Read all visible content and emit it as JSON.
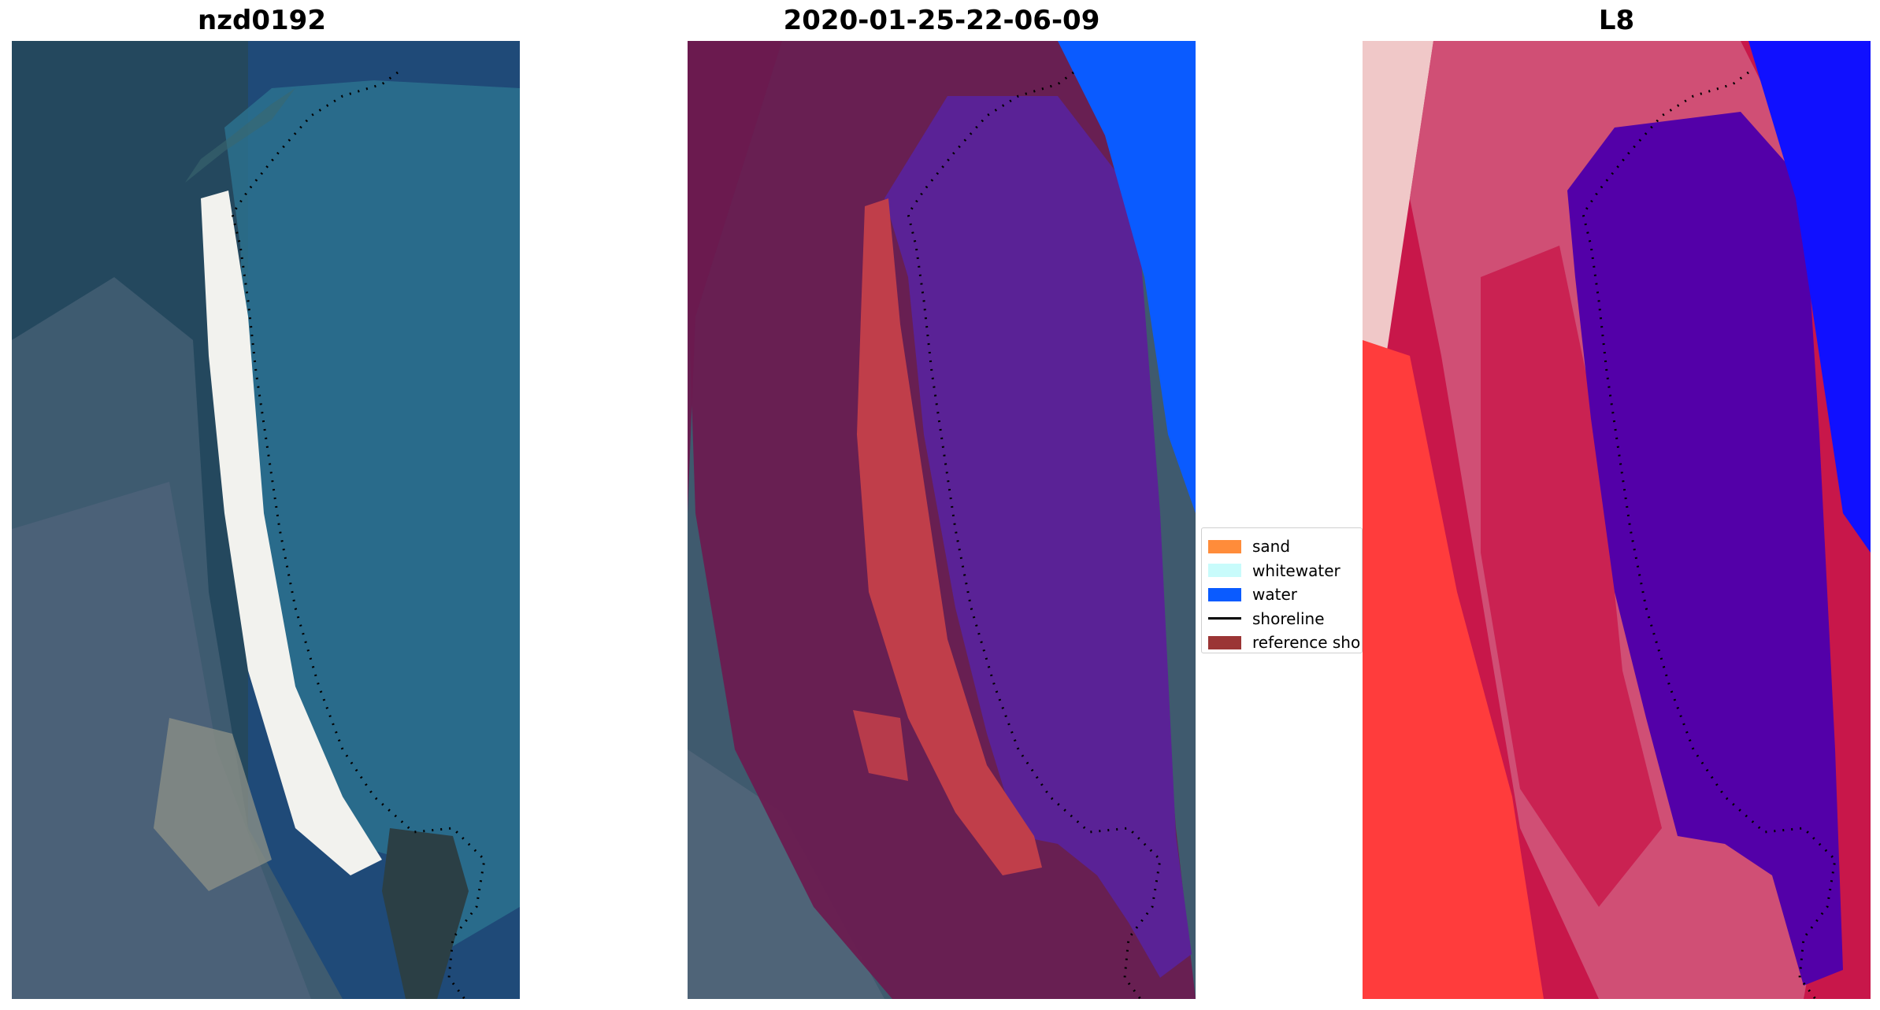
{
  "panels": [
    {
      "title": "nzd0192"
    },
    {
      "title": "2020-01-25-22-06-09"
    },
    {
      "title": "L8"
    }
  ],
  "legend": {
    "items": [
      {
        "label": "sand",
        "color": "#ff8c3a",
        "kind": "patch"
      },
      {
        "label": "whitewater",
        "color": "#c8fbfb",
        "kind": "patch"
      },
      {
        "label": "water",
        "color": "#0a5bff",
        "kind": "patch"
      },
      {
        "label": "shoreline",
        "color": "#000000",
        "kind": "line"
      },
      {
        "label": "reference shoreline",
        "color": "#9b3535",
        "kind": "patch"
      }
    ]
  },
  "colors": {
    "rgb_ocean": "#1f4a78",
    "rgb_shallow": "#2f7a93",
    "rgb_land": "#3f5a6e",
    "rgb_sand": "#f2f2ee",
    "class_land": "#6b1a4f",
    "class_water": "#5a2296",
    "class_ocean": "#0a5bff",
    "class_sand": "#c03e4a",
    "mndwi_land": "#c8174a",
    "mndwi_land_light": "#d0557a",
    "mndwi_water": "#5300a8",
    "mndwi_ocean": "#1010ff",
    "mndwi_urban": "#ff3c3c"
  }
}
